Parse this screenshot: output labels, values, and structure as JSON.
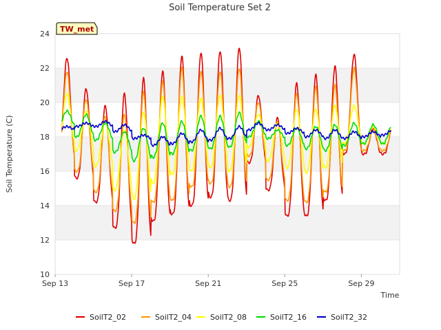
{
  "chart_data": {
    "type": "line",
    "title": "Soil Temperature Set 2",
    "xlabel": "Time",
    "ylabel": "Soil Temperature (C)",
    "station_badge": "TW_met",
    "x_start": "2023-09-13",
    "x_end": "2023-10-01",
    "x_ticks": [
      {
        "label": "Sep 13",
        "day": 0
      },
      {
        "label": "Sep 17",
        "day": 4
      },
      {
        "label": "Sep 21",
        "day": 8
      },
      {
        "label": "Sep 25",
        "day": 12
      },
      {
        "label": "Sep 29",
        "day": 16
      }
    ],
    "ylim": [
      10,
      24
    ],
    "y_ticks": [
      10,
      12,
      14,
      16,
      18,
      20,
      22,
      24
    ],
    "grid": "horizontal bands",
    "legend_position": "bottom",
    "series": [
      {
        "name": "SoilT2_02",
        "color": "#e00000",
        "days": [
          13,
          14,
          15,
          16,
          17,
          18,
          19,
          20,
          21,
          22,
          23,
          24,
          25,
          26,
          27,
          28,
          29,
          30
        ],
        "max": [
          22.6,
          20.8,
          19.8,
          20.5,
          21.4,
          21.8,
          22.7,
          22.9,
          23.0,
          23.2,
          20.4,
          19.1,
          21.1,
          21.6,
          22.1,
          22.8,
          18.5,
          18.5
        ],
        "min": [
          16.8,
          15.6,
          14.2,
          12.7,
          11.8,
          13.1,
          13.5,
          14.0,
          14.5,
          14.3,
          16.5,
          14.9,
          13.4,
          13.4,
          14.3,
          17.0,
          17.0,
          17.0
        ]
      },
      {
        "name": "SoilT2_04",
        "color": "#ff9900",
        "days": [
          13,
          14,
          15,
          16,
          17,
          18,
          19,
          20,
          21,
          22,
          23,
          24,
          25,
          26,
          27,
          28,
          29,
          30
        ],
        "max": [
          21.8,
          20.2,
          19.2,
          19.3,
          20.6,
          21.2,
          22.0,
          21.8,
          21.8,
          22.0,
          20.0,
          18.9,
          20.5,
          20.9,
          21.0,
          22.0,
          18.4,
          18.4
        ],
        "min": [
          16.9,
          16.0,
          14.8,
          13.7,
          13.0,
          14.2,
          14.3,
          15.1,
          15.3,
          15.1,
          16.9,
          15.5,
          14.3,
          14.2,
          14.8,
          17.2,
          17.2,
          17.2
        ]
      },
      {
        "name": "SoilT2_08",
        "color": "#ffff00",
        "days": [
          13,
          14,
          15,
          16,
          17,
          18,
          19,
          20,
          21,
          22,
          23,
          24,
          25,
          26,
          27,
          28,
          29,
          30
        ],
        "max": [
          20.5,
          19.5,
          18.9,
          18.4,
          19.4,
          20.3,
          20.3,
          20.2,
          20.4,
          20.4,
          19.3,
          18.8,
          19.6,
          19.6,
          19.8,
          19.8,
          18.6,
          18.6
        ],
        "min": [
          17.4,
          17.2,
          16.3,
          14.9,
          14.4,
          15.3,
          15.8,
          16.0,
          16.2,
          16.0,
          17.4,
          16.6,
          16.2,
          15.9,
          16.2,
          17.6,
          17.6,
          17.6
        ]
      },
      {
        "name": "SoilT2_16",
        "color": "#00dd00",
        "days": [
          13,
          14,
          15,
          16,
          17,
          18,
          19,
          20,
          21,
          22,
          23,
          24,
          25,
          26,
          27,
          28,
          29,
          30
        ],
        "max": [
          19.5,
          19.3,
          18.8,
          18.3,
          18.5,
          18.8,
          18.9,
          19.2,
          19.2,
          19.4,
          18.9,
          18.4,
          18.5,
          18.6,
          18.7,
          18.8,
          18.7,
          18.7
        ],
        "min": [
          18.6,
          18.0,
          17.8,
          17.1,
          16.6,
          16.8,
          17.0,
          17.2,
          17.3,
          17.4,
          18.0,
          17.9,
          17.5,
          17.3,
          17.2,
          17.5,
          17.6,
          17.6
        ]
      },
      {
        "name": "SoilT2_32",
        "color": "#0000cc",
        "days": [
          13,
          14,
          15,
          16,
          17,
          18,
          19,
          20,
          21,
          22,
          23,
          24,
          25,
          26,
          27,
          28,
          29,
          30
        ],
        "max": [
          18.6,
          18.8,
          18.9,
          18.7,
          18.1,
          18.0,
          18.2,
          18.4,
          18.5,
          18.6,
          18.8,
          18.7,
          18.5,
          18.4,
          18.4,
          18.3,
          18.3,
          18.4
        ],
        "min": [
          18.4,
          18.6,
          18.6,
          18.3,
          17.9,
          17.5,
          17.6,
          17.7,
          17.8,
          17.9,
          18.4,
          18.4,
          18.2,
          18.0,
          17.9,
          17.9,
          18.0,
          18.1
        ]
      }
    ]
  }
}
